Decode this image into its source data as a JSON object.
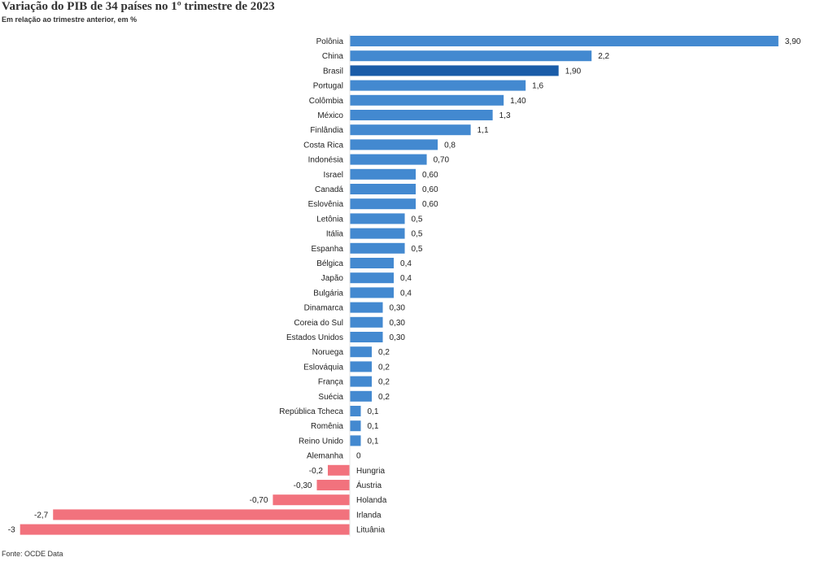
{
  "title": "Variação do PIB de 34 países no 1º trimestre de 2023",
  "subtitle": "Em relação ao trimestre anterior, em %",
  "source": "Fonte: OCDE Data",
  "colors": {
    "positive": "#4389d0",
    "highlight": "#1a5ca8",
    "negative": "#f2727d"
  },
  "chart_data": {
    "type": "bar",
    "orientation": "horizontal",
    "title": "Variação do PIB de 34 países no 1º trimestre de 2023",
    "subtitle": "Em relação ao trimestre anterior, em %",
    "highlight": "Brasil",
    "categories": [
      "Polônia",
      "China",
      "Brasil",
      "Portugal",
      "Colômbia",
      "México",
      "Finlândia",
      "Costa Rica",
      "Indonésia",
      "Israel",
      "Canadá",
      "Eslovênia",
      "Letônia",
      "Itália",
      "Espanha",
      "Bélgica",
      "Japão",
      "Bulgária",
      "Dinamarca",
      "Coreia do Sul",
      "Estados Unidos",
      "Noruega",
      "Eslováquia",
      "França",
      "Suécia",
      "República Tcheca",
      "Romênia",
      "Reino Unido",
      "Alemanha",
      "Hungria",
      "Áustria",
      "Holanda",
      "Irlanda",
      "Lituânia"
    ],
    "values": [
      3.9,
      2.2,
      1.9,
      1.6,
      1.4,
      1.3,
      1.1,
      0.8,
      0.7,
      0.6,
      0.6,
      0.6,
      0.5,
      0.5,
      0.5,
      0.4,
      0.4,
      0.4,
      0.3,
      0.3,
      0.3,
      0.2,
      0.2,
      0.2,
      0.2,
      0.1,
      0.1,
      0.1,
      0,
      -0.2,
      -0.3,
      -0.7,
      -2.7,
      -3
    ],
    "labels": [
      "3,90",
      "2,2",
      "1,90",
      "1,6",
      "1,40",
      "1,3",
      "1,1",
      "0,8",
      "0,70",
      "0,60",
      "0,60",
      "0,60",
      "0,5",
      "0,5",
      "0,5",
      "0,4",
      "0,4",
      "0,4",
      "0,30",
      "0,30",
      "0,30",
      "0,2",
      "0,2",
      "0,2",
      "0,2",
      "0,1",
      "0,1",
      "0,1",
      "0",
      "-0,2",
      "-0,30",
      "-0,70",
      "-2,7",
      "-3"
    ],
    "xlim": [
      -3,
      3.9
    ],
    "grid": false
  }
}
